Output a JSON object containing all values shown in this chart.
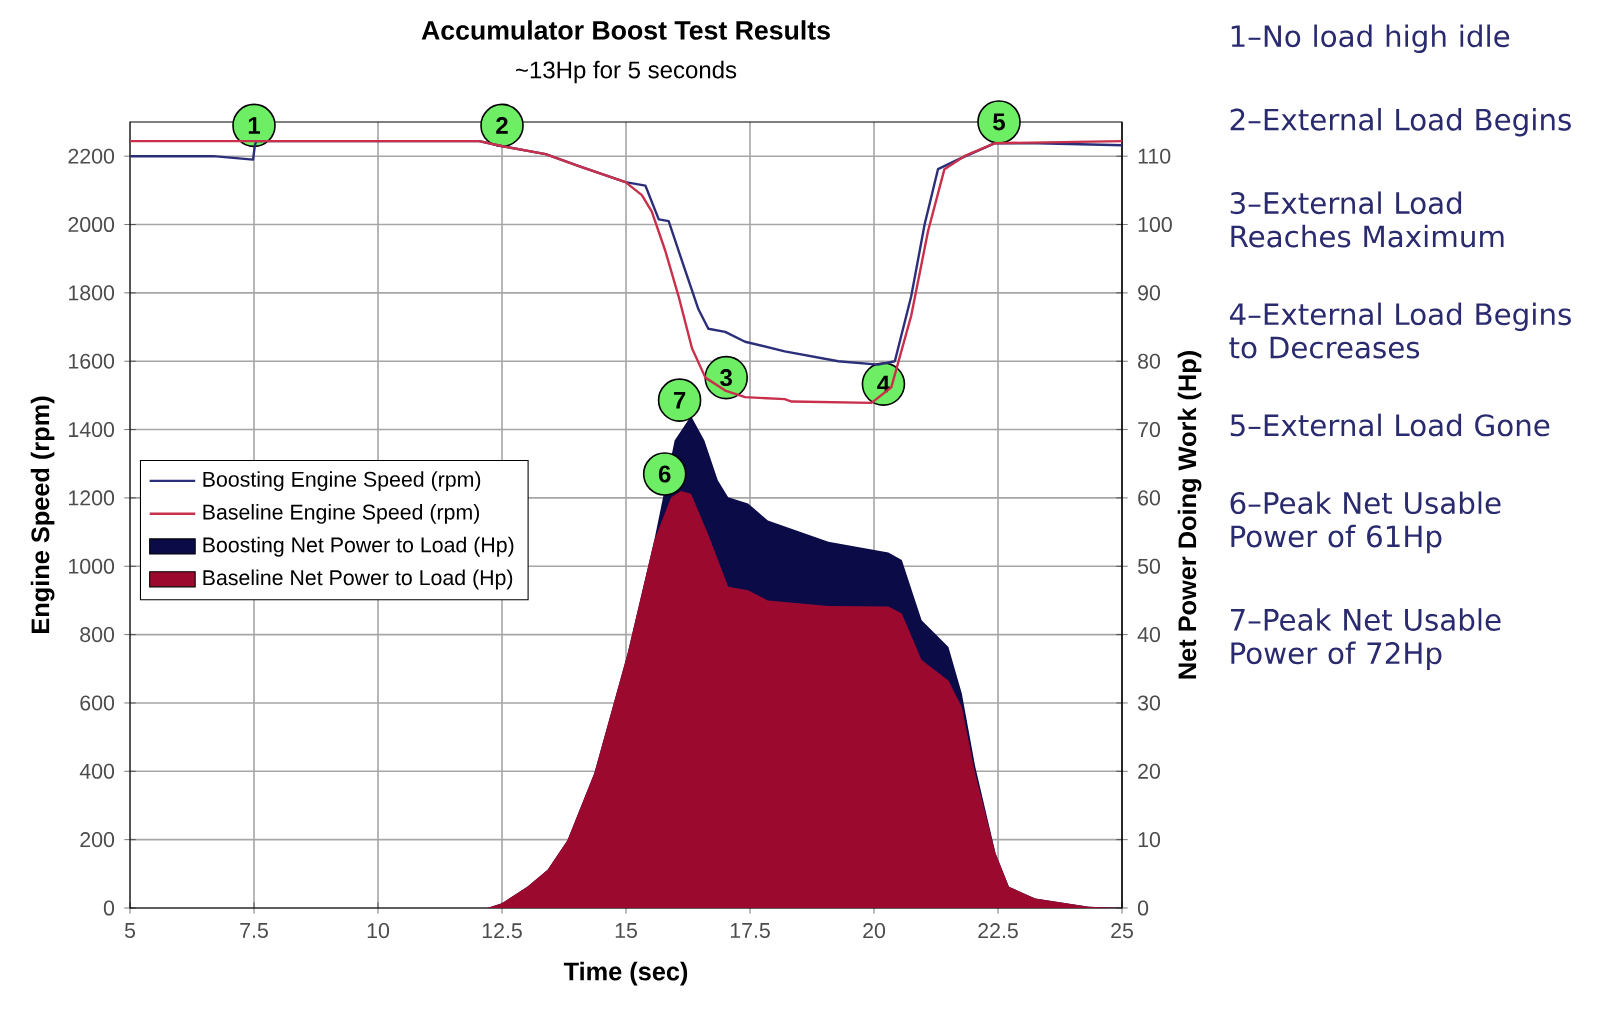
{
  "chart_data": {
    "type": "line",
    "title": "Accumulator Boost Test Results",
    "subtitle": "~13Hp for 5 seconds",
    "xlabel": "Time (sec)",
    "ylabel": "Engine Speed (rpm)",
    "y2label": "Net Power Doing Work (Hp)",
    "xlim": [
      5,
      25
    ],
    "xticks": [
      5,
      7.5,
      10,
      12.5,
      15,
      17.5,
      20,
      22.5,
      25
    ],
    "ylim": [
      0,
      2300
    ],
    "yticks": [
      0,
      200,
      400,
      600,
      800,
      1000,
      1200,
      1400,
      1600,
      1800,
      2000,
      2200
    ],
    "y2lim": [
      0,
      115
    ],
    "y2ticks": [
      0,
      10,
      20,
      30,
      40,
      50,
      60,
      70,
      80,
      90,
      100,
      110
    ],
    "grid": true,
    "legend": "left",
    "marker": "none",
    "line_style": "solid",
    "series": [
      {
        "name": "Boosting Engine Speed (rpm)",
        "color": "#2b2f7a",
        "x": [
          5,
          6.68,
          7.48,
          7.52,
          7.55,
          12.04,
          12.51,
          13.38,
          14.05,
          14.99,
          15.39,
          15.66,
          15.86,
          16.19,
          16.46,
          16.66,
          17.0,
          17.4,
          18.2,
          19.28,
          20.08,
          20.42,
          20.75,
          21.02,
          21.29,
          21.69,
          22.44,
          23.3,
          25
        ],
        "values": [
          2200,
          2200,
          2190,
          2234,
          2244,
          2244,
          2229,
          2206,
          2171,
          2124,
          2114,
          2015,
          2010,
          1867,
          1752,
          1695,
          1686,
          1657,
          1629,
          1600,
          1590,
          1600,
          1790,
          2000,
          2162,
          2190,
          2238,
          2238,
          2232
        ]
      },
      {
        "name": "Baseline Engine Speed (rpm)",
        "color": "#c8304c",
        "x": [
          5,
          12.04,
          12.51,
          13.38,
          14.05,
          14.99,
          15.32,
          15.52,
          15.79,
          16.06,
          16.33,
          16.6,
          17.0,
          17.4,
          18.2,
          18.34,
          19.95,
          20.35,
          20.75,
          21.09,
          21.42,
          21.82,
          22.44,
          25
        ],
        "values": [
          2244,
          2244,
          2229,
          2206,
          2171,
          2124,
          2086,
          2038,
          1924,
          1790,
          1638,
          1552,
          1514,
          1495,
          1489,
          1482,
          1478,
          1524,
          1733,
          1981,
          2162,
          2200,
          2238,
          2244
        ]
      },
      {
        "name": "Boosting Net Power to Load (Hp)",
        "type": "area",
        "axis": "y2",
        "color": "#0b0b48",
        "x": [
          5,
          12.2,
          12.5,
          13.01,
          13.42,
          13.82,
          14.36,
          15.03,
          15.57,
          15.98,
          16.31,
          16.58,
          16.85,
          17.06,
          17.46,
          17.86,
          19.08,
          20.29,
          20.56,
          20.96,
          21.5,
          21.77,
          22.04,
          22.45,
          22.72,
          23.25,
          24.33,
          25
        ],
        "values": [
          0,
          0,
          0.7,
          3.1,
          5.6,
          9.9,
          19.7,
          37.2,
          53.8,
          68.4,
          72,
          68.4,
          62.6,
          60.1,
          59.2,
          56.7,
          53.6,
          52,
          50.9,
          42.1,
          38.2,
          31.4,
          20.7,
          8,
          3.1,
          1.4,
          0.2,
          0
        ]
      },
      {
        "name": "Baseline Net Power to Load (Hp)",
        "type": "area",
        "axis": "y2",
        "color": "#9b0a2e",
        "x": [
          5,
          12.2,
          12.5,
          13.01,
          13.42,
          13.82,
          14.36,
          15.03,
          15.57,
          15.91,
          16.11,
          16.31,
          16.65,
          17.06,
          17.46,
          17.86,
          19.08,
          20.29,
          20.56,
          20.96,
          21.5,
          21.77,
          22.04,
          22.45,
          22.72,
          23.25,
          24.33,
          25
        ],
        "values": [
          0,
          0,
          0.7,
          3.1,
          5.6,
          9.9,
          19.7,
          37.2,
          53.8,
          60.1,
          61,
          60.6,
          54.8,
          47,
          46.5,
          45,
          44.2,
          44.1,
          43.1,
          36.3,
          33.3,
          29.4,
          19.7,
          8,
          3.1,
          1.4,
          0.2,
          0
        ]
      }
    ],
    "annotations": [
      {
        "text": "1",
        "x": 7.5,
        "y": 2290
      },
      {
        "text": "2",
        "x": 12.5,
        "y": 2290
      },
      {
        "text": "3",
        "x": 17.02,
        "y": 1552
      },
      {
        "text": "4",
        "x": 20.19,
        "y": 1533
      },
      {
        "text": "5",
        "x": 22.52,
        "y": 2300
      },
      {
        "text": "6",
        "x": 15.78,
        "y": 1270
      },
      {
        "text": "7",
        "x": 16.08,
        "y": 1486
      },
      "1–No load high idle",
      "2–External Load Begins",
      "3–External Load Reaches Maximum",
      "4–External Load Begins to Decreases",
      "5–External Load Gone",
      "6–Peak Net Usable Power of 61Hp",
      "7–Peak Net Usable Power of 72Hp"
    ]
  }
}
